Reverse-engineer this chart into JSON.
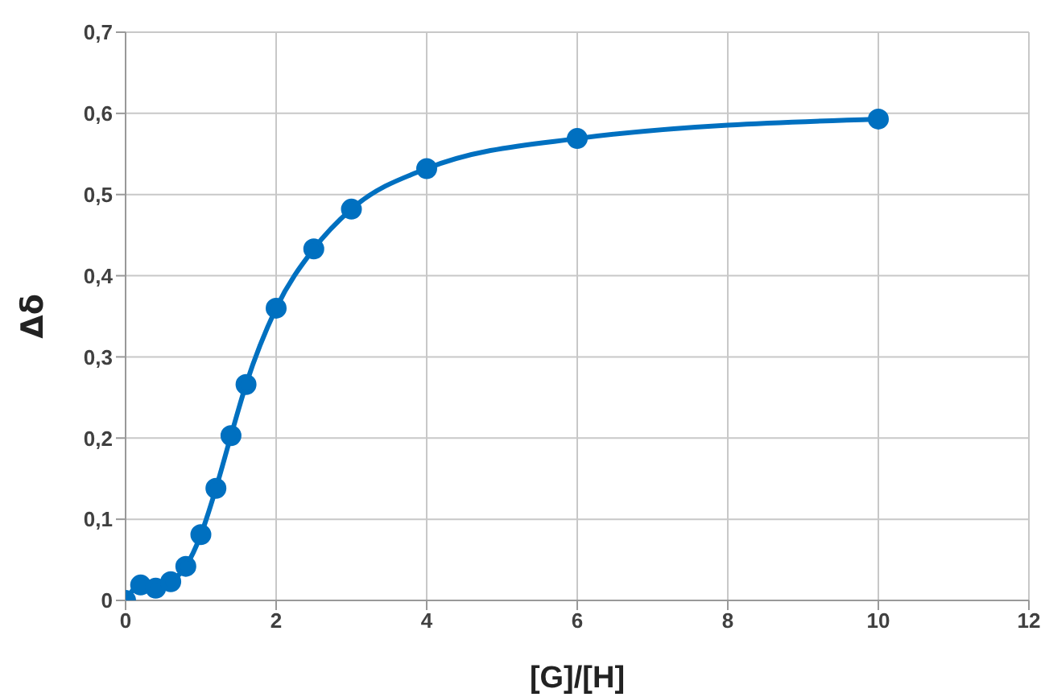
{
  "chart_data": {
    "type": "line",
    "xlabel": "[G]/[H]",
    "ylabel": "Δδ",
    "x": [
      0,
      0.2,
      0.4,
      0.6,
      0.8,
      1.0,
      1.2,
      1.4,
      1.6,
      2,
      2.5,
      3,
      4,
      6,
      10
    ],
    "series": [
      {
        "color": "#0070c0",
        "values": [
          0,
          0.019,
          0.015,
          0.023,
          0.042,
          0.081,
          0.138,
          0.203,
          0.266,
          0.36,
          0.433,
          0.482,
          0.532,
          0.569,
          0.593
        ]
      }
    ],
    "xlim": [
      0,
      12
    ],
    "xticks": [
      0,
      2,
      4,
      6,
      8,
      10,
      12
    ],
    "ylim": [
      0,
      0.7
    ],
    "yticks": [
      0,
      {
        "value": 0.1,
        "label": "0,1"
      },
      {
        "value": 0.2,
        "label": "0,2"
      },
      {
        "value": 0.3,
        "label": "0,3"
      },
      {
        "value": 0.4,
        "label": "0,4"
      },
      {
        "value": 0.5,
        "label": "0,5"
      },
      {
        "value": 0.6,
        "label": "0,6"
      },
      {
        "value": 0.7,
        "label": "0,7"
      }
    ],
    "grid": true,
    "marker": "circle",
    "line_style": "solid",
    "legend": false
  }
}
